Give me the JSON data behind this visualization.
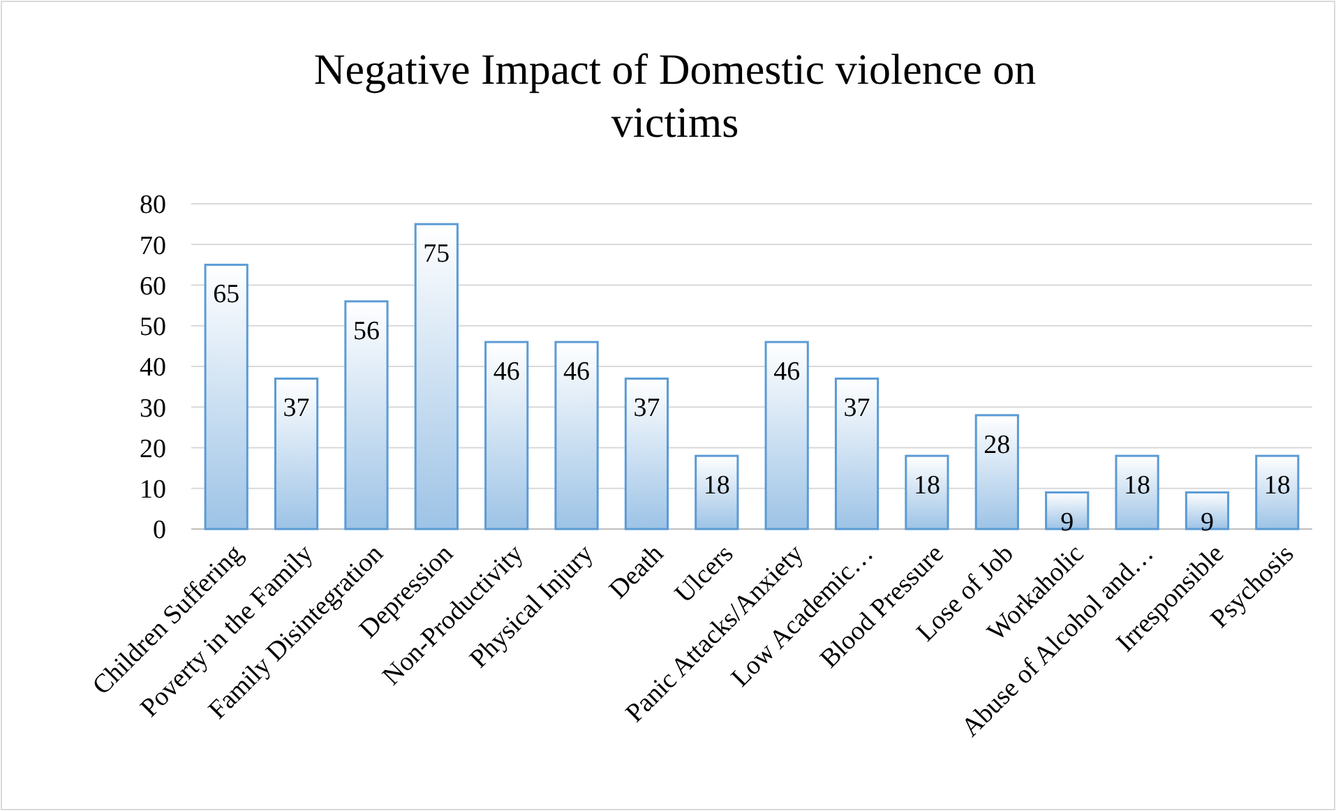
{
  "chart_data": {
    "type": "bar",
    "title": "Negative Impact of Domestic violence on victims",
    "categories": [
      "Children Suffering",
      "Poverty in the Family",
      "Family Disintegration",
      "Depression",
      "Non-Productivity",
      "Physical Injury",
      "Death",
      "Ulcers",
      "Panic Attacks/Anxiety",
      "Low Academic…",
      "Blood Pressure",
      "Lose of Job",
      "Workaholic",
      "Abuse of Alcohol and…",
      "Irresponsible",
      "Psychosis"
    ],
    "values": [
      65,
      37,
      56,
      75,
      46,
      46,
      37,
      18,
      46,
      37,
      18,
      28,
      9,
      18,
      9,
      18
    ],
    "color": "#5b9bd5",
    "ylim": [
      0,
      80
    ],
    "yticks": [
      0,
      10,
      20,
      30,
      40,
      50,
      60,
      70,
      80
    ],
    "grid": "y",
    "data_labels": true
  }
}
